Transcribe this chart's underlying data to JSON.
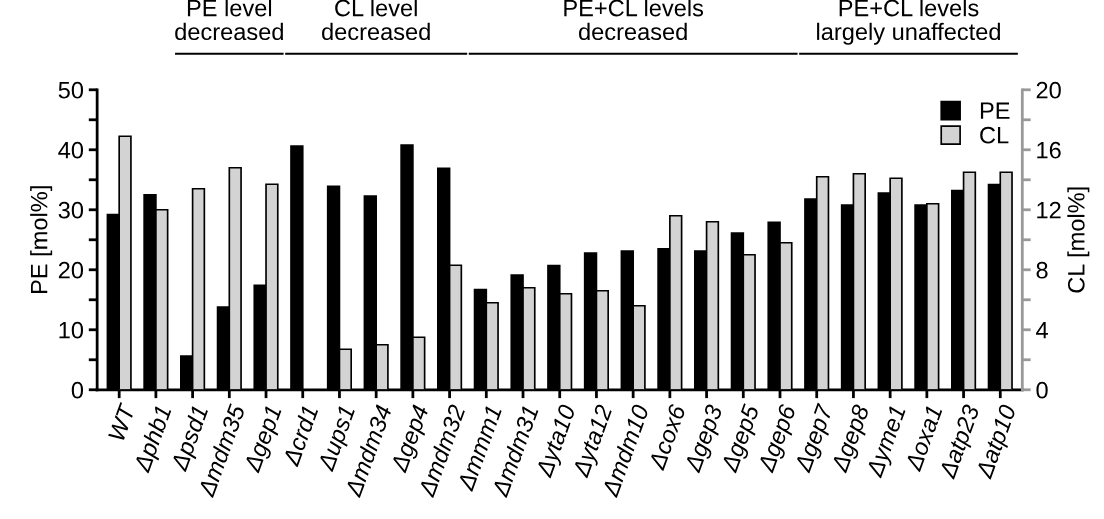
{
  "chart_data": {
    "type": "bar",
    "categories": [
      "WT",
      "Δphb1",
      "Δpsd1",
      "Δmdm35",
      "Δgep1",
      "Δcrd1",
      "Δups1",
      "Δmdm34",
      "Δgep4",
      "Δmdm32",
      "Δmmm1",
      "Δmdm31",
      "Δyta10",
      "Δyta12",
      "Δmdm10",
      "Δcox6",
      "Δgep3",
      "Δgep5",
      "Δgep6",
      "Δgep7",
      "Δgep8",
      "Δyme1",
      "Δoxa1",
      "Δatp23",
      "Δatp10"
    ],
    "series": [
      {
        "name": "PE",
        "color": "#000000",
        "values": [
          29.2,
          32.5,
          5.6,
          13.8,
          17.4,
          40.6,
          33.9,
          32.3,
          40.8,
          36.9,
          16.7,
          19.1,
          20.7,
          22.8,
          23.1,
          23.5,
          23.1,
          26.1,
          27.9,
          31.8,
          30.8,
          32.8,
          30.8,
          33.2,
          34.2
        ]
      },
      {
        "name": "CL",
        "color": "#d3d3d3",
        "axis": "y2",
        "values": [
          16.9,
          12.0,
          13.4,
          14.8,
          13.7,
          null,
          2.7,
          3.0,
          3.5,
          8.3,
          5.8,
          6.8,
          6.4,
          6.6,
          5.6,
          11.6,
          11.2,
          9.0,
          9.8,
          14.2,
          14.4,
          14.1,
          12.4,
          14.5,
          14.5
        ]
      }
    ],
    "ylabel": "PE [mol%]",
    "y2label": "CL [mol%]",
    "ylim": [
      0,
      50
    ],
    "yticks": [
      0,
      {
        "value": 5,
        "label": null
      },
      10,
      {
        "value": 15,
        "label": null
      },
      20,
      {
        "value": 25,
        "label": null
      },
      30,
      {
        "value": 35,
        "label": null
      },
      40,
      {
        "value": 45,
        "label": null
      },
      50
    ],
    "y2lim": [
      0,
      20
    ],
    "y2ticks": [
      0,
      {
        "value": 2,
        "label": null
      },
      4,
      {
        "value": 6,
        "label": null
      },
      8,
      {
        "value": 10,
        "label": null
      },
      12,
      {
        "value": 14,
        "label": null
      },
      16,
      {
        "value": 18,
        "label": null
      },
      20
    ],
    "annotations": [
      "PE level\ndecreased",
      "CL level\ndecreased",
      "PE+CL levels\ndecreased",
      "PE+CL levels\nlargely unaffected"
    ],
    "legend": "top right",
    "grid": false
  }
}
